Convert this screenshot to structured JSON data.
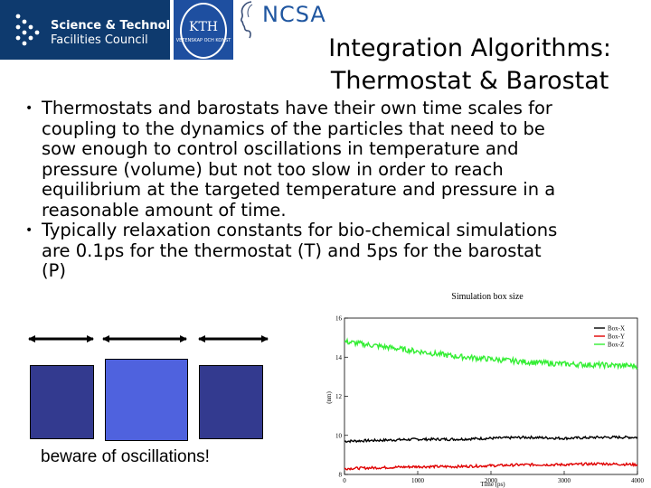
{
  "logos": {
    "stfc": {
      "line1": "Science & Technology",
      "line2": "Facilities Council"
    },
    "kth": {
      "name": "KTH",
      "subtitle": "VETENSKAP OCH KONST"
    },
    "ncsa": {
      "name": "NCSA"
    }
  },
  "title": {
    "line1": "Integration Algorithms:",
    "line2": "Thermostat & Barostat"
  },
  "bullets": [
    {
      "lines": [
        "Thermostats and barostats have their own time scales for",
        "coupling to the dynamics of the particles that need to be",
        "sow enough to control oscillations in temperature and",
        "pressure (volume) but not too slow in order to reach",
        "equilibrium at the targeted temperature and pressure in a",
        "reasonable amount of time."
      ]
    },
    {
      "lines": [
        "Typically relaxation constants for bio-chemical simulations",
        "are 0.1ps for the thermostat (T) and 5ps for the barostat",
        "(P)"
      ]
    }
  ],
  "boxes_caption": "beware of oscillations!",
  "colors": {
    "stfc_bg": "#0e3a6e",
    "kth_bg": "#1e4fa0",
    "ncsa_text": "#1f56a0",
    "box_dark": "#333a8f",
    "box_light": "#4f62de",
    "series_x": "#000000",
    "series_y": "#e00000",
    "series_z": "#33ee33"
  },
  "chart_data": {
    "type": "line",
    "title": "Simulation box size",
    "xlabel": "Time (ps)",
    "ylabel": "(nm)",
    "xlim": [
      0,
      4000
    ],
    "ylim": [
      8,
      16
    ],
    "xticks": [
      0,
      1000,
      2000,
      3000,
      4000
    ],
    "yticks": [
      8,
      10,
      12,
      14,
      16
    ],
    "legend_position": "top-right",
    "grid": false,
    "series": [
      {
        "name": "Box-X",
        "color": "#000000",
        "x": [
          0,
          500,
          1000,
          1500,
          2000,
          2500,
          3000,
          3500,
          4000
        ],
        "values": [
          9.7,
          9.75,
          9.8,
          9.8,
          9.85,
          9.9,
          9.85,
          9.9,
          9.9
        ]
      },
      {
        "name": "Box-Y",
        "color": "#e00000",
        "x": [
          0,
          500,
          1000,
          1500,
          2000,
          2500,
          3000,
          3500,
          4000
        ],
        "values": [
          8.3,
          8.35,
          8.4,
          8.4,
          8.45,
          8.5,
          8.5,
          8.55,
          8.5
        ]
      },
      {
        "name": "Box-Z",
        "color": "#33ee33",
        "x": [
          0,
          500,
          1000,
          1500,
          2000,
          2500,
          3000,
          3500,
          4000
        ],
        "values": [
          14.8,
          14.55,
          14.3,
          14.05,
          13.9,
          13.75,
          13.65,
          13.6,
          13.55
        ]
      }
    ]
  }
}
